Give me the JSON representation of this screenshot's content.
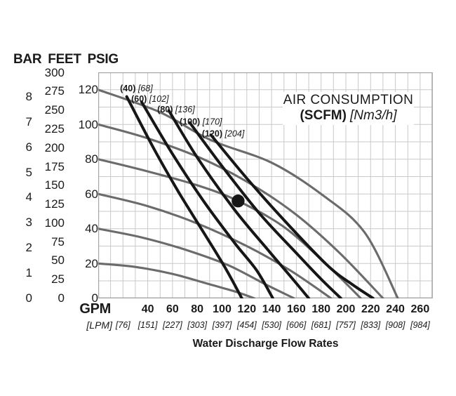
{
  "header": {
    "bar": "BAR",
    "feet": "FEET",
    "psig": "PSIG"
  },
  "x_axis": {
    "gpm": "GPM",
    "lpm": "[LPM]"
  },
  "title": {
    "line1": "AIR CONSUMPTION",
    "line2_bold": "(SCFM)",
    "line2_italic": "[Nm3/h]"
  },
  "footer": {
    "title": "Water Discharge Flow Rates"
  },
  "chart_data": {
    "type": "line",
    "title": "AIR CONSUMPTION (SCFM) [Nm3/h]",
    "xlabel": "Water Discharge Flow Rates",
    "x_units": [
      "GPM",
      "[LPM]"
    ],
    "y_units": [
      "BAR",
      "FEET",
      "PSIG"
    ],
    "xlim": [
      0,
      270
    ],
    "ylim_psig": [
      0,
      130
    ],
    "grid": true,
    "grid_step_gpm": 10,
    "grid_step_psig": 10,
    "y_ticks_bar": [
      8,
      7,
      6,
      5,
      4,
      3,
      2,
      1,
      0
    ],
    "y_ticks_feet": [
      300,
      275,
      250,
      225,
      200,
      175,
      150,
      125,
      100,
      75,
      50,
      25,
      0
    ],
    "y_ticks_psig": [
      120,
      100,
      80,
      60,
      40,
      20,
      0
    ],
    "x_ticks_gpm": [
      40,
      60,
      80,
      100,
      120,
      140,
      160,
      180,
      200,
      220,
      240,
      260
    ],
    "x_ticks_lpm": [
      {
        "gpm": 20,
        "label": "[76]"
      },
      {
        "gpm": 40,
        "label": "[151]"
      },
      {
        "gpm": 60,
        "label": "[227]"
      },
      {
        "gpm": 80,
        "label": "[303]"
      },
      {
        "gpm": 100,
        "label": "[397]"
      },
      {
        "gpm": 120,
        "label": "[454]"
      },
      {
        "gpm": 140,
        "label": "[530]"
      },
      {
        "gpm": 160,
        "label": "[606]"
      },
      {
        "gpm": 180,
        "label": "[681]"
      },
      {
        "gpm": 200,
        "label": "[757]"
      },
      {
        "gpm": 220,
        "label": "[833]"
      },
      {
        "gpm": 240,
        "label": "[908]"
      },
      {
        "gpm": 260,
        "label": "[984]"
      }
    ],
    "water_curves": [
      {
        "air_inlet_psig": 20,
        "points": [
          [
            0,
            20
          ],
          [
            30,
            18
          ],
          [
            60,
            14
          ],
          [
            90,
            8
          ],
          [
            110,
            4
          ],
          [
            126,
            0
          ]
        ]
      },
      {
        "air_inlet_psig": 40,
        "points": [
          [
            0,
            40
          ],
          [
            35,
            35
          ],
          [
            70,
            28
          ],
          [
            105,
            19
          ],
          [
            135,
            8
          ],
          [
            158,
            0
          ]
        ]
      },
      {
        "air_inlet_psig": 60,
        "points": [
          [
            0,
            60
          ],
          [
            40,
            53
          ],
          [
            80,
            43
          ],
          [
            120,
            30
          ],
          [
            155,
            16
          ],
          [
            188,
            0
          ]
        ]
      },
      {
        "air_inlet_psig": 80,
        "points": [
          [
            0,
            80
          ],
          [
            40,
            73
          ],
          [
            80,
            65
          ],
          [
            113,
            56
          ],
          [
            150,
            41
          ],
          [
            185,
            19
          ],
          [
            212,
            0
          ]
        ]
      },
      {
        "air_inlet_psig": 100,
        "points": [
          [
            0,
            100
          ],
          [
            40,
            92
          ],
          [
            85,
            80
          ],
          [
            125,
            65
          ],
          [
            160,
            48
          ],
          [
            195,
            26
          ],
          [
            230,
            0
          ]
        ]
      },
      {
        "air_inlet_psig": 120,
        "points": [
          [
            0,
            120
          ],
          [
            50,
            107
          ],
          [
            91,
            91
          ],
          [
            140,
            78
          ],
          [
            180,
            60
          ],
          [
            215,
            38
          ],
          [
            242,
            0
          ]
        ]
      }
    ],
    "air_curves": [
      {
        "scfm": "(40)",
        "nm3h": "[68]",
        "label_anchor": [
          44,
          119
        ],
        "points": [
          [
            23,
            116
          ],
          [
            45,
            86
          ],
          [
            65,
            61
          ],
          [
            85,
            38
          ],
          [
            103,
            17
          ],
          [
            116,
            0
          ]
        ]
      },
      {
        "scfm": "(60)",
        "nm3h": "[102]",
        "label_anchor": [
          57,
          113
        ],
        "points": [
          [
            35,
            113
          ],
          [
            60,
            83
          ],
          [
            85,
            56
          ],
          [
            110,
            32
          ],
          [
            128,
            16
          ],
          [
            141,
            0
          ]
        ]
      },
      {
        "scfm": "(80)",
        "nm3h": "[136]",
        "label_anchor": [
          78,
          107
        ],
        "points": [
          [
            57,
            108
          ],
          [
            80,
            81
          ],
          [
            110,
            51
          ],
          [
            138,
            27
          ],
          [
            156,
            12
          ],
          [
            170,
            0
          ]
        ]
      },
      {
        "scfm": "(100)",
        "nm3h": "[170]",
        "label_anchor": [
          100,
          100
        ],
        "points": [
          [
            74,
            101
          ],
          [
            100,
            76
          ],
          [
            130,
            49
          ],
          [
            160,
            26
          ],
          [
            180,
            11
          ],
          [
            196,
            0
          ]
        ]
      },
      {
        "scfm": "(120)",
        "nm3h": "[204]",
        "label_anchor": [
          118,
          93
        ],
        "points": [
          [
            91,
            94
          ],
          [
            120,
            69
          ],
          [
            150,
            45
          ],
          [
            185,
            19
          ],
          [
            205,
            8
          ],
          [
            222,
            0
          ]
        ]
      }
    ],
    "operating_point": {
      "gpm": 113,
      "psig": 56
    },
    "colors": {
      "water_curve": "#6b6b6b",
      "air_curve": "#161616",
      "grid": "#c9c9c9",
      "border": "#a6a6a6",
      "dot": "#161616",
      "text": "#1a1a1a"
    }
  }
}
